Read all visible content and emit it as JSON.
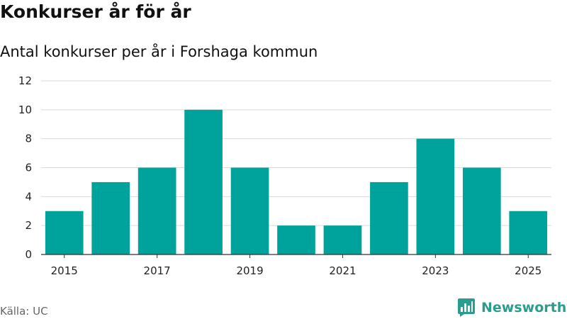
{
  "header": {
    "title": "Konkurser år för år",
    "subtitle": "Antal konkurser per år i Forshaga kommun"
  },
  "footer": {
    "source": "Källa: UC",
    "brand": "Newsworthy",
    "brand_icon": "bar-chart-speech-bubble-icon"
  },
  "colors": {
    "bar": "#00a39b",
    "brand": "#2a9d8f",
    "grid": "#d9d9d9"
  },
  "chart_data": {
    "type": "bar",
    "title": "Konkurser år för år",
    "subtitle": "Antal konkurser per år i Forshaga kommun",
    "xlabel": "",
    "ylabel": "",
    "categories": [
      "2015",
      "2016",
      "2017",
      "2018",
      "2019",
      "2020",
      "2021",
      "2022",
      "2023",
      "2024",
      "2025"
    ],
    "values": [
      3,
      5,
      6,
      10,
      6,
      2,
      2,
      5,
      8,
      6,
      3
    ],
    "x_tick_labels": [
      "2015",
      "2017",
      "2019",
      "2021",
      "2023",
      "2025"
    ],
    "y_ticks": [
      0,
      2,
      4,
      6,
      8,
      10,
      12
    ],
    "ylim": [
      0,
      12
    ],
    "grid": true,
    "legend": "none"
  }
}
